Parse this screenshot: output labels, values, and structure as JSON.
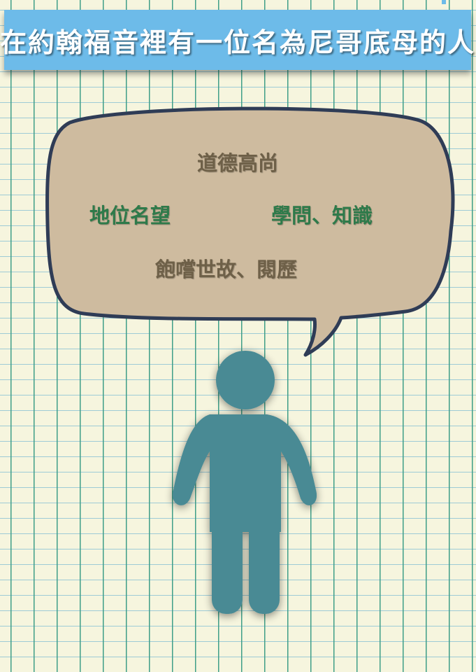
{
  "banner": {
    "title": "在約翰福音裡有一位名為尼哥底母的人"
  },
  "speech_bubble": {
    "line1": "道德高尚",
    "line2_left": "地位名望",
    "line2_right": "學問、知識",
    "line3": "飽嚐世故、閱歷"
  },
  "colors": {
    "banner_blue": "#6dbbe9",
    "bubble_fill": "#cebb9f",
    "bubble_outline": "#2f3c56",
    "person_teal": "#4a8a94",
    "text_brown": "#6e6048",
    "text_green": "#2e7a4a",
    "paper": "#f6f5de"
  },
  "icons": {
    "figure": "person-icon",
    "bubble": "speech-bubble-icon"
  }
}
